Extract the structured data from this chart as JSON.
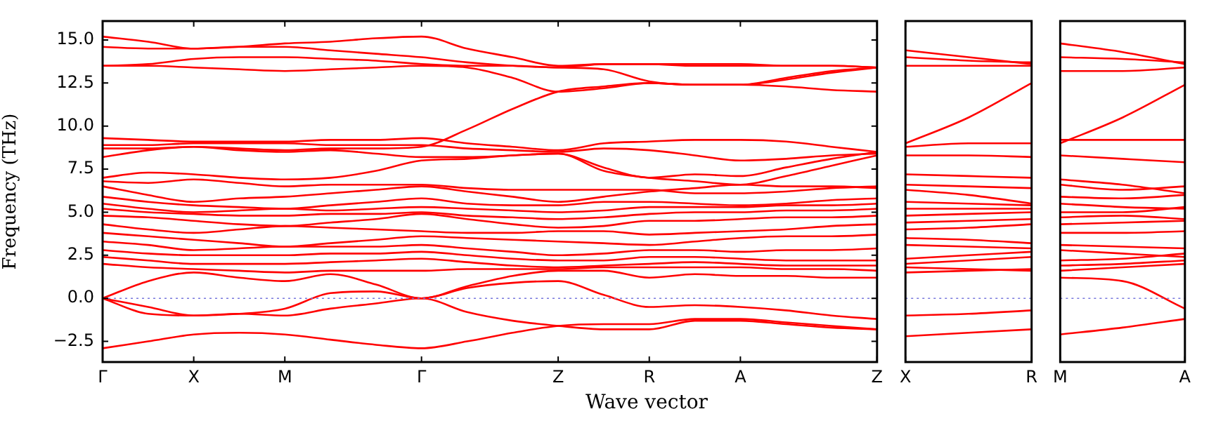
{
  "chart_data": [
    {
      "type": "line",
      "ylabel": "Frequency (THz)",
      "xlabel": "Wave vector",
      "ylim": [
        -3.7,
        16.1
      ],
      "yticks": [
        {
          "value": -2.5,
          "label": "−2.5"
        },
        {
          "value": 0,
          "label": "0.0"
        },
        {
          "value": 2.5,
          "label": "2.5"
        },
        {
          "value": 5,
          "label": "5.0"
        },
        {
          "value": 7.5,
          "label": "7.5"
        },
        {
          "value": 10,
          "label": "10.0"
        },
        {
          "value": 12.5,
          "label": "12.5"
        },
        {
          "value": 15,
          "label": "15.0"
        }
      ],
      "categories": [
        "Γ",
        null,
        "X",
        null,
        "M",
        null,
        null,
        "Γ",
        null,
        null,
        "Z",
        null,
        "R",
        null,
        "A",
        null,
        null,
        "Z"
      ],
      "marker": "none",
      "line_style": "solid",
      "grid": false,
      "legend": false,
      "ref_lines": [
        {
          "axis": "y",
          "value": 0,
          "color": "#7777dd",
          "line_style": "dotted"
        }
      ],
      "series": [
        {
          "color": "#ff0000",
          "values": [
            15.2,
            14.9,
            14.5,
            14.6,
            14.8,
            14.9,
            15.1,
            15.2,
            14.5,
            14.0,
            13.5,
            13.6,
            13.6,
            13.5,
            13.5,
            13.5,
            13.5,
            13.4
          ]
        },
        {
          "color": "#ff0000",
          "values": [
            14.6,
            14.5,
            14.5,
            14.6,
            14.6,
            14.4,
            14.2,
            14.0,
            13.7,
            13.5,
            13.4,
            13.3,
            12.6,
            12.4,
            12.4,
            12.7,
            13.1,
            13.4
          ]
        },
        {
          "color": "#ff0000",
          "values": [
            13.5,
            13.6,
            13.9,
            14.0,
            14.0,
            13.9,
            13.8,
            13.6,
            13.5,
            13.5,
            13.4,
            13.6,
            13.6,
            13.6,
            13.6,
            13.5,
            13.5,
            13.4
          ]
        },
        {
          "color": "#ff0000",
          "values": [
            13.5,
            13.5,
            13.4,
            13.3,
            13.2,
            13.3,
            13.4,
            13.5,
            13.4,
            12.8,
            12.0,
            12.2,
            12.5,
            12.4,
            12.4,
            12.3,
            12.1,
            12.0
          ]
        },
        {
          "color": "#ff0000",
          "values": [
            8.7,
            8.7,
            8.8,
            8.7,
            8.6,
            8.7,
            8.7,
            8.8,
            9.8,
            11.0,
            12.0,
            12.3,
            12.5,
            12.4,
            12.4,
            12.8,
            13.2,
            13.4
          ]
        },
        {
          "color": "#ff0000",
          "values": [
            9.3,
            9.2,
            9.1,
            9.1,
            9.1,
            9.2,
            9.2,
            9.3,
            9.0,
            8.8,
            8.6,
            9.0,
            9.1,
            9.2,
            9.2,
            9.1,
            8.8,
            8.5
          ]
        },
        {
          "color": "#ff0000",
          "values": [
            8.9,
            8.9,
            9.0,
            9.0,
            9.0,
            8.9,
            8.9,
            8.9,
            8.7,
            8.6,
            8.5,
            8.7,
            8.6,
            8.3,
            8.0,
            8.1,
            8.3,
            8.4
          ]
        },
        {
          "color": "#ff0000",
          "values": [
            8.2,
            8.6,
            8.8,
            8.6,
            8.5,
            8.6,
            8.4,
            8.2,
            8.2,
            8.3,
            8.4,
            7.6,
            7.0,
            7.2,
            7.1,
            7.6,
            8.1,
            8.5
          ]
        },
        {
          "color": "#ff0000",
          "values": [
            7.0,
            7.3,
            7.2,
            7.0,
            6.9,
            7.0,
            7.4,
            8.0,
            8.1,
            8.3,
            8.4,
            7.4,
            7.0,
            6.8,
            6.6,
            7.1,
            7.7,
            8.3
          ]
        },
        {
          "color": "#ff0000",
          "values": [
            6.8,
            6.7,
            6.9,
            6.7,
            6.5,
            6.6,
            6.6,
            6.6,
            6.4,
            6.3,
            6.3,
            6.3,
            6.3,
            6.1,
            6.1,
            6.2,
            6.4,
            6.5
          ]
        },
        {
          "color": "#ff0000",
          "values": [
            6.5,
            6.0,
            5.6,
            5.8,
            5.9,
            6.1,
            6.3,
            6.5,
            6.2,
            5.9,
            5.6,
            5.9,
            6.2,
            6.4,
            6.6,
            6.5,
            6.5,
            6.4
          ]
        },
        {
          "color": "#ff0000",
          "values": [
            5.9,
            5.6,
            5.4,
            5.3,
            5.2,
            5.4,
            5.6,
            5.8,
            5.5,
            5.4,
            5.4,
            5.6,
            5.6,
            5.5,
            5.4,
            5.5,
            5.7,
            5.8
          ]
        },
        {
          "color": "#ff0000",
          "values": [
            5.5,
            5.2,
            5.0,
            5.1,
            5.2,
            5.1,
            5.2,
            5.3,
            5.2,
            5.1,
            5.0,
            5.1,
            5.3,
            5.3,
            5.3,
            5.4,
            5.4,
            5.5
          ]
        },
        {
          "color": "#ff0000",
          "values": [
            5.2,
            5.0,
            4.9,
            4.8,
            4.8,
            4.9,
            4.9,
            5.0,
            4.8,
            4.7,
            4.6,
            4.7,
            4.9,
            5.0,
            5.0,
            5.1,
            5.1,
            5.2
          ]
        },
        {
          "color": "#ff0000",
          "values": [
            4.8,
            4.7,
            4.5,
            4.3,
            4.2,
            4.4,
            4.6,
            4.9,
            4.6,
            4.3,
            4.1,
            4.2,
            4.5,
            4.5,
            4.6,
            4.7,
            4.7,
            4.8
          ]
        },
        {
          "color": "#ff0000",
          "values": [
            4.3,
            4.0,
            3.8,
            4.0,
            4.2,
            4.1,
            4.0,
            3.9,
            3.8,
            3.8,
            3.9,
            3.9,
            3.7,
            3.8,
            3.9,
            4.0,
            4.2,
            4.3
          ]
        },
        {
          "color": "#ff0000",
          "values": [
            3.8,
            3.6,
            3.4,
            3.2,
            3.0,
            3.2,
            3.4,
            3.6,
            3.5,
            3.4,
            3.3,
            3.2,
            3.1,
            3.3,
            3.5,
            3.6,
            3.6,
            3.7
          ]
        },
        {
          "color": "#ff0000",
          "values": [
            3.3,
            3.1,
            2.8,
            2.9,
            3.0,
            3.0,
            3.0,
            3.1,
            2.9,
            2.7,
            2.5,
            2.6,
            2.8,
            2.8,
            2.7,
            2.8,
            2.8,
            2.9
          ]
        },
        {
          "color": "#ff0000",
          "values": [
            2.8,
            2.6,
            2.5,
            2.5,
            2.5,
            2.6,
            2.6,
            2.7,
            2.5,
            2.3,
            2.2,
            2.2,
            2.4,
            2.4,
            2.3,
            2.2,
            2.2,
            2.2
          ]
        },
        {
          "color": "#ff0000",
          "values": [
            2.4,
            2.2,
            2.0,
            2.0,
            2.0,
            2.1,
            2.2,
            2.3,
            2.1,
            1.9,
            1.8,
            1.9,
            2.0,
            2.1,
            2.0,
            1.9,
            1.9,
            1.9
          ]
        },
        {
          "color": "#ff0000",
          "values": [
            2.0,
            1.8,
            1.7,
            1.6,
            1.5,
            1.6,
            1.6,
            1.6,
            1.7,
            1.7,
            1.7,
            1.8,
            1.8,
            1.8,
            1.8,
            1.7,
            1.7,
            1.6
          ]
        },
        {
          "color": "#ff0000",
          "values": [
            0,
            1.0,
            1.5,
            1.2,
            1.0,
            1.4,
            0.8,
            0,
            0.7,
            1.3,
            1.6,
            1.6,
            1.2,
            1.4,
            1.3,
            1.3,
            1.2,
            1.2
          ]
        },
        {
          "color": "#ff0000",
          "values": [
            0,
            -0.5,
            -1.0,
            -0.9,
            -0.6,
            0.3,
            0.4,
            0,
            0.6,
            0.9,
            1.0,
            0.2,
            -0.5,
            -0.4,
            -0.5,
            -0.7,
            -1.0,
            -1.2
          ]
        },
        {
          "color": "#ff0000",
          "values": [
            0,
            -0.9,
            -1.0,
            -0.9,
            -1.0,
            -0.6,
            -0.3,
            0,
            -0.8,
            -1.3,
            -1.6,
            -1.8,
            -1.8,
            -1.3,
            -1.3,
            -1.5,
            -1.7,
            -1.8
          ]
        },
        {
          "color": "#ff0000",
          "values": [
            -2.9,
            -2.5,
            -2.1,
            -2.0,
            -2.1,
            -2.4,
            -2.7,
            -2.9,
            -2.5,
            -2.0,
            -1.6,
            -1.5,
            -1.5,
            -1.2,
            -1.2,
            -1.4,
            -1.6,
            -1.8
          ]
        }
      ]
    },
    {
      "type": "line",
      "ylim": [
        -3.7,
        16.1
      ],
      "categories": [
        "X",
        null,
        "R"
      ],
      "tick_labels": "x",
      "marker": "none",
      "line_style": "solid",
      "grid": false,
      "legend": false,
      "ref_lines": [
        {
          "axis": "y",
          "value": 0,
          "color": "#7777dd",
          "line_style": "dotted"
        }
      ],
      "series": [
        {
          "color": "#ff0000",
          "values": [
            14.4,
            14.0,
            13.6
          ]
        },
        {
          "color": "#ff0000",
          "values": [
            14.0,
            13.8,
            13.7
          ]
        },
        {
          "color": "#ff0000",
          "values": [
            13.5,
            13.5,
            13.5
          ]
        },
        {
          "color": "#ff0000",
          "values": [
            9.0,
            10.5,
            12.5
          ]
        },
        {
          "color": "#ff0000",
          "values": [
            8.8,
            9.0,
            9.0
          ]
        },
        {
          "color": "#ff0000",
          "values": [
            8.3,
            8.3,
            8.2
          ]
        },
        {
          "color": "#ff0000",
          "values": [
            7.2,
            7.1,
            7.0
          ]
        },
        {
          "color": "#ff0000",
          "values": [
            6.6,
            6.5,
            6.4
          ]
        },
        {
          "color": "#ff0000",
          "values": [
            6.3,
            6.0,
            5.5
          ]
        },
        {
          "color": "#ff0000",
          "values": [
            5.6,
            5.5,
            5.4
          ]
        },
        {
          "color": "#ff0000",
          "values": [
            5.2,
            5.2,
            5.2
          ]
        },
        {
          "color": "#ff0000",
          "values": [
            4.8,
            4.9,
            5.0
          ]
        },
        {
          "color": "#ff0000",
          "values": [
            4.4,
            4.5,
            4.6
          ]
        },
        {
          "color": "#ff0000",
          "values": [
            4.0,
            4.1,
            4.3
          ]
        },
        {
          "color": "#ff0000",
          "values": [
            3.5,
            3.4,
            3.2
          ]
        },
        {
          "color": "#ff0000",
          "values": [
            3.1,
            3.0,
            2.9
          ]
        },
        {
          "color": "#ff0000",
          "values": [
            2.3,
            2.5,
            2.7
          ]
        },
        {
          "color": "#ff0000",
          "values": [
            2.0,
            2.2,
            2.4
          ]
        },
        {
          "color": "#ff0000",
          "values": [
            1.8,
            1.7,
            1.6
          ]
        },
        {
          "color": "#ff0000",
          "values": [
            1.5,
            1.6,
            1.7
          ]
        },
        {
          "color": "#ff0000",
          "values": [
            -1.0,
            -0.9,
            -0.7
          ]
        },
        {
          "color": "#ff0000",
          "values": [
            -2.2,
            -2.0,
            -1.8
          ]
        }
      ]
    },
    {
      "type": "line",
      "ylim": [
        -3.7,
        16.1
      ],
      "categories": [
        "M",
        null,
        "A"
      ],
      "tick_labels": "x",
      "marker": "none",
      "line_style": "solid",
      "grid": false,
      "legend": false,
      "ref_lines": [
        {
          "axis": "y",
          "value": 0,
          "color": "#7777dd",
          "line_style": "dotted"
        }
      ],
      "series": [
        {
          "color": "#ff0000",
          "values": [
            14.8,
            14.3,
            13.6
          ]
        },
        {
          "color": "#ff0000",
          "values": [
            14.0,
            13.9,
            13.7
          ]
        },
        {
          "color": "#ff0000",
          "values": [
            13.2,
            13.2,
            13.4
          ]
        },
        {
          "color": "#ff0000",
          "values": [
            9.0,
            10.5,
            12.4
          ]
        },
        {
          "color": "#ff0000",
          "values": [
            9.2,
            9.2,
            9.2
          ]
        },
        {
          "color": "#ff0000",
          "values": [
            8.3,
            8.1,
            7.9
          ]
        },
        {
          "color": "#ff0000",
          "values": [
            6.9,
            6.6,
            6.1
          ]
        },
        {
          "color": "#ff0000",
          "values": [
            6.6,
            6.3,
            6.5
          ]
        },
        {
          "color": "#ff0000",
          "values": [
            5.9,
            5.8,
            6.0
          ]
        },
        {
          "color": "#ff0000",
          "values": [
            5.5,
            5.3,
            5.2
          ]
        },
        {
          "color": "#ff0000",
          "values": [
            5.0,
            5.0,
            5.3
          ]
        },
        {
          "color": "#ff0000",
          "values": [
            4.7,
            4.8,
            4.6
          ]
        },
        {
          "color": "#ff0000",
          "values": [
            4.3,
            4.4,
            4.5
          ]
        },
        {
          "color": "#ff0000",
          "values": [
            3.8,
            3.8,
            3.9
          ]
        },
        {
          "color": "#ff0000",
          "values": [
            3.1,
            3.0,
            2.9
          ]
        },
        {
          "color": "#ff0000",
          "values": [
            2.8,
            2.6,
            2.4
          ]
        },
        {
          "color": "#ff0000",
          "values": [
            2.2,
            2.3,
            2.6
          ]
        },
        {
          "color": "#ff0000",
          "values": [
            1.9,
            2.0,
            2.2
          ]
        },
        {
          "color": "#ff0000",
          "values": [
            1.6,
            1.8,
            2.0
          ]
        },
        {
          "color": "#ff0000",
          "values": [
            1.2,
            1.0,
            -0.6
          ]
        },
        {
          "color": "#ff0000",
          "values": [
            -2.1,
            -1.7,
            -1.2
          ]
        }
      ]
    }
  ]
}
